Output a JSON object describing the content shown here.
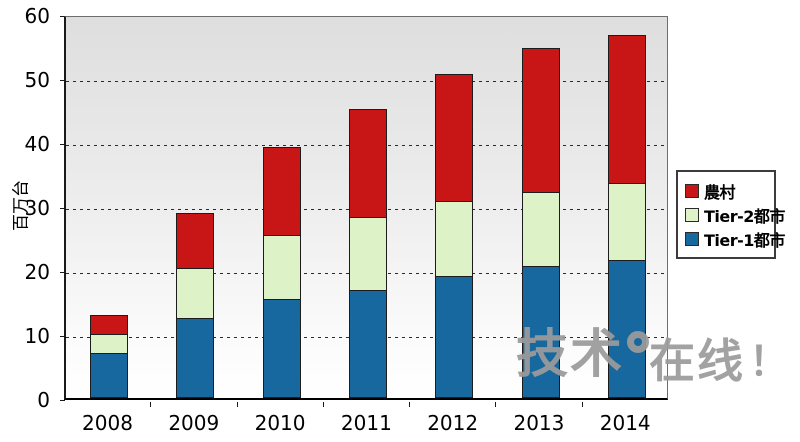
{
  "chart_data": {
    "type": "bar",
    "stacked": true,
    "title": "",
    "xlabel": "",
    "ylabel": "百万台",
    "categories": [
      "2008",
      "2009",
      "2010",
      "2011",
      "2012",
      "2013",
      "2014"
    ],
    "series": [
      {
        "name": "Tier-1都市",
        "color": "#17689e",
        "values": [
          7.0,
          12.5,
          15.4,
          16.8,
          19.0,
          20.6,
          21.6
        ]
      },
      {
        "name": "Tier-2都市",
        "color": "#ddf2c6",
        "values": [
          3.1,
          8.0,
          10.2,
          11.7,
          12.0,
          11.8,
          12.2
        ]
      },
      {
        "name": "農村",
        "color": "#c81616",
        "values": [
          3.2,
          8.8,
          13.9,
          17.0,
          19.9,
          22.6,
          23.2
        ]
      }
    ],
    "totals": [
      13.3,
      29.3,
      39.5,
      45.5,
      50.9,
      55.0,
      57.0
    ],
    "ylim": [
      0,
      60
    ],
    "yticks": [
      0,
      10,
      20,
      30,
      40,
      50,
      60
    ],
    "grid": "horizontal-dashed",
    "plot_background": "gray-to-white-gradient",
    "legend_position": "right"
  },
  "legend": {
    "items": [
      {
        "label": "農村",
        "color": "#c81616"
      },
      {
        "label": "Tier-2都市",
        "color": "#ddf2c6"
      },
      {
        "label": "Tier-1都市",
        "color": "#17689e"
      }
    ]
  },
  "watermark": {
    "part_left": "技术",
    "part_right": "在线",
    "exclamation": "！",
    "color": "#9b9b9b"
  }
}
